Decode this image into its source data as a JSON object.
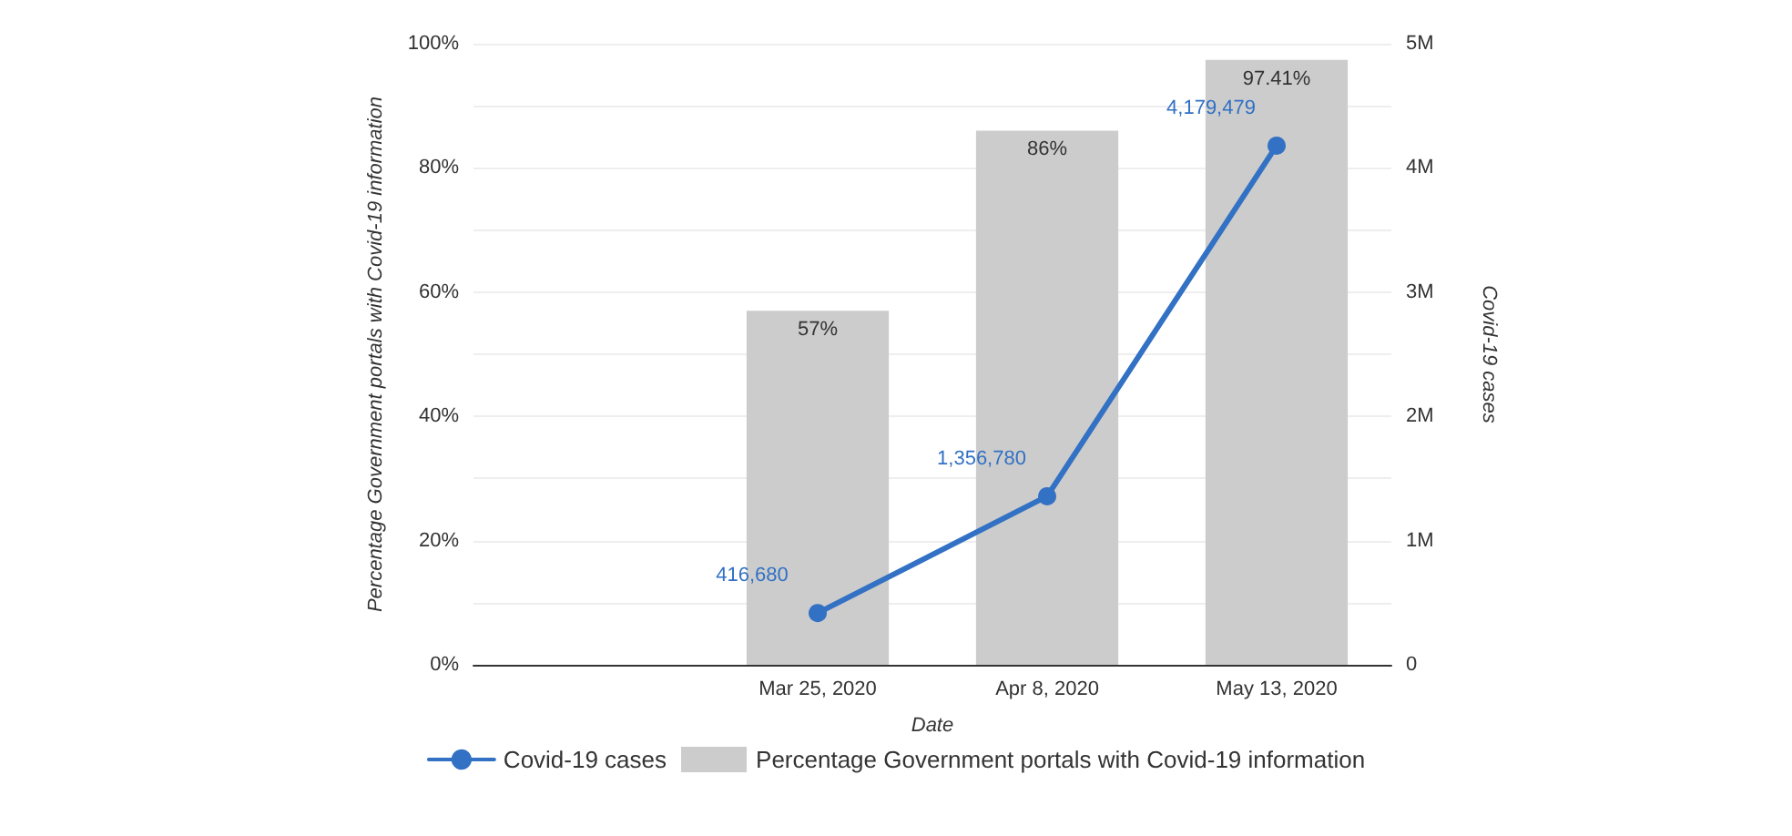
{
  "chart_data": {
    "type": "bar",
    "xlabel": "Date",
    "ylabel": "Percentage Government portals with Covid-19 information",
    "y2label": "Covid-19 cases",
    "categories": [
      null,
      "Mar 25, 2020",
      "Apr 8, 2020",
      "May 13, 2020"
    ],
    "series": [
      {
        "name": "Covid-19 cases",
        "type": "line",
        "axis": "y2",
        "color": "#3271c4",
        "values": [
          null,
          416680,
          1356780,
          4179479
        ],
        "value_labels": [
          null,
          "416,680",
          "1,356,780",
          "4,179,479"
        ]
      },
      {
        "name": "Percentage Government portals with Covid-19 information",
        "color": "#cccccc",
        "values": [
          null,
          57,
          86,
          97.41
        ],
        "value_labels": [
          null,
          "57%",
          "86%",
          "97.41%"
        ]
      }
    ],
    "ylim": [
      0,
      100
    ],
    "yticks": [
      {
        "value": 0,
        "label": "0%"
      },
      {
        "value": 10,
        "label": null
      },
      {
        "value": 20,
        "label": "20%"
      },
      {
        "value": 30,
        "label": null
      },
      {
        "value": 40,
        "label": "40%"
      },
      {
        "value": 50,
        "label": null
      },
      {
        "value": 60,
        "label": "60%"
      },
      {
        "value": 70,
        "label": null
      },
      {
        "value": 80,
        "label": "80%"
      },
      {
        "value": 90,
        "label": null
      },
      {
        "value": 100,
        "label": "100%"
      }
    ],
    "y2lim": [
      0,
      5000000
    ],
    "y2ticks": [
      {
        "value": 0,
        "label": "0"
      },
      {
        "value": 1000000,
        "label": "1M"
      },
      {
        "value": 2000000,
        "label": "2M"
      },
      {
        "value": 3000000,
        "label": "3M"
      },
      {
        "value": 4000000,
        "label": "4M"
      },
      {
        "value": 5000000,
        "label": "5M"
      }
    ],
    "grid": "y",
    "legend": "bottom",
    "marker": "circle",
    "line_style": "solid"
  }
}
